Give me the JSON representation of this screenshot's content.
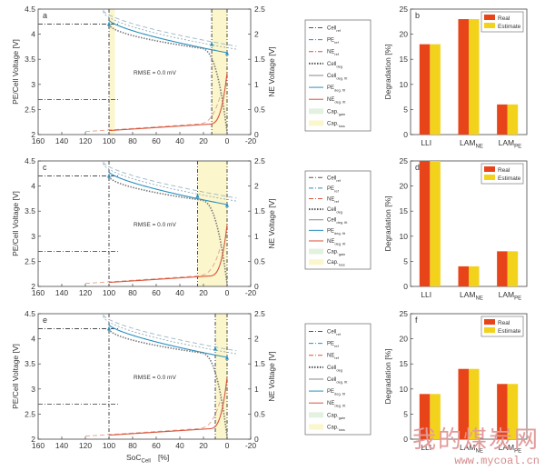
{
  "chart_data": [
    {
      "type": "line",
      "panel_label": "a",
      "xlabel": "",
      "ylabel": "PE/Cell Voltage [V]",
      "y2label": "NE Voltage [V]",
      "xlim": [
        160,
        -20
      ],
      "ylim": [
        2,
        4.5
      ],
      "y2lim": [
        0,
        2.5
      ],
      "xticks": [
        160,
        140,
        120,
        100,
        80,
        60,
        40,
        20,
        0,
        -20
      ],
      "yticks": [
        2,
        2.5,
        3,
        3.5,
        4,
        4.5
      ],
      "y2ticks": [
        0,
        0.5,
        1,
        1.5,
        2,
        2.5
      ],
      "annotation": "RMSE = 0.0 mV",
      "cap_loss_band": [
        13,
        0
      ],
      "cap_gain_band": [
        100,
        95
      ],
      "legend": [
        "Cell ref",
        "PE ref",
        "NE ref",
        "Cell deg",
        "Cell deg. fit",
        "PE deg. fit",
        "NE deg. fit",
        "Cap. gain",
        "Cap. loss"
      ]
    },
    {
      "type": "line",
      "panel_label": "c",
      "xlabel": "",
      "ylabel": "PE/Cell Voltage [V]",
      "y2label": "NE Voltage [V]",
      "xlim": [
        160,
        -20
      ],
      "ylim": [
        2,
        4.5
      ],
      "y2lim": [
        0,
        2.5
      ],
      "xticks": [
        160,
        140,
        120,
        100,
        80,
        60,
        40,
        20,
        0,
        -20
      ],
      "yticks": [
        2,
        2.5,
        3,
        3.5,
        4,
        4.5
      ],
      "y2ticks": [
        0,
        0.5,
        1,
        1.5,
        2,
        2.5
      ],
      "annotation": "RMSE = 0.0 mV",
      "cap_loss_band": [
        25,
        0
      ],
      "legend": [
        "Cell ref",
        "PE ref",
        "NE ref",
        "Cell deg",
        "Cell deg. fit",
        "PE deg. fit",
        "NE deg. fit",
        "Cap. gain",
        "Cap. loss"
      ]
    },
    {
      "type": "line",
      "panel_label": "e",
      "xlabel": "SoC Cell [%]",
      "ylabel": "PE/Cell Voltage [V]",
      "y2label": "NE Voltage [V]",
      "xlim": [
        160,
        -20
      ],
      "ylim": [
        2,
        4.5
      ],
      "y2lim": [
        0,
        2.5
      ],
      "xticks": [
        160,
        140,
        120,
        100,
        80,
        60,
        40,
        20,
        0,
        -20
      ],
      "yticks": [
        2,
        2.5,
        3,
        3.5,
        4,
        4.5
      ],
      "y2ticks": [
        0,
        0.5,
        1,
        1.5,
        2,
        2.5
      ],
      "annotation": "RMSE = 0.0 mV",
      "cap_loss_band": [
        10,
        0
      ],
      "legend": [
        "Cell ref",
        "PE ref",
        "NE ref",
        "Cell deg",
        "Cell deg. fit",
        "PE deg. fit",
        "NE deg. fit",
        "Cap. gain",
        "Cap. loss"
      ]
    },
    {
      "type": "bar",
      "panel_label": "b",
      "categories": [
        "LLI",
        "LAM NE",
        "LAM PE"
      ],
      "series": [
        {
          "name": "Real",
          "values": [
            18,
            23,
            6
          ]
        },
        {
          "name": "Estimate",
          "values": [
            18,
            23,
            6
          ]
        }
      ],
      "ylabel": "Degradation [%]",
      "ylim": [
        0,
        25
      ],
      "yticks": [
        0,
        5,
        10,
        15,
        20,
        25
      ]
    },
    {
      "type": "bar",
      "panel_label": "d",
      "categories": [
        "LLI",
        "LAM NE",
        "LAM PE"
      ],
      "series": [
        {
          "name": "Real",
          "values": [
            25,
            4,
            7
          ]
        },
        {
          "name": "Estimate",
          "values": [
            25,
            4,
            7
          ]
        }
      ],
      "ylabel": "Degradation [%]",
      "ylim": [
        0,
        25
      ],
      "yticks": [
        0,
        5,
        10,
        15,
        20,
        25
      ]
    },
    {
      "type": "bar",
      "panel_label": "f",
      "categories": [
        "LLI",
        "LAM NE",
        "LAM PE"
      ],
      "series": [
        {
          "name": "Real",
          "values": [
            9,
            14,
            11
          ]
        },
        {
          "name": "Estimate",
          "values": [
            9,
            14,
            11
          ]
        }
      ],
      "ylabel": "Degradation [%]",
      "ylim": [
        0,
        25
      ],
      "yticks": [
        0,
        5,
        10,
        15,
        20,
        25
      ]
    }
  ],
  "colors": {
    "real": "#e8441a",
    "estimate": "#f3d21c",
    "pe": "#2a8fbf",
    "ne": "#d9543a",
    "cell": "#7a7a7a",
    "cap_loss": "#fbf6cc",
    "cap_gain": "#e3f1e0"
  },
  "watermark": {
    "cn": "我的煤炭网",
    "url": "www.mycoal.cn"
  }
}
